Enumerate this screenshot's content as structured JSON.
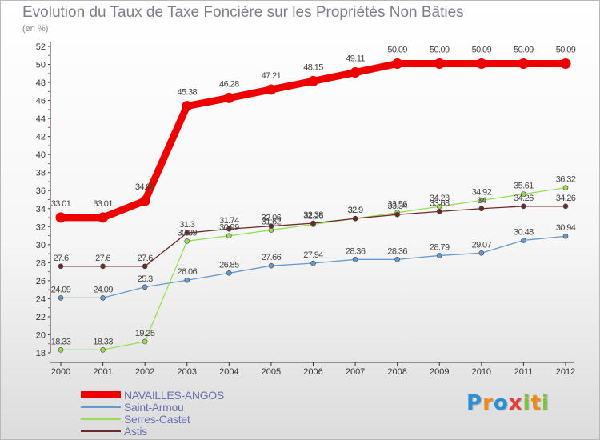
{
  "title": "Evolution du Taux de Taxe Foncière sur les Propriétés Non Bâties",
  "subtitle": "(en %)",
  "chart_data": {
    "type": "line",
    "title": "Evolution du Taux de Taxe Foncière sur les Propriétés Non Bâties",
    "ylabel": "(en %)",
    "xlabel": "",
    "x": [
      "2000",
      "2001",
      "2002",
      "2003",
      "2004",
      "2005",
      "2006",
      "2007",
      "2008",
      "2009",
      "2010",
      "2011",
      "2012"
    ],
    "ylim": [
      18,
      52
    ],
    "y_ticks": [
      18,
      20,
      22,
      24,
      26,
      28,
      30,
      32,
      34,
      36,
      38,
      40,
      42,
      44,
      46,
      48,
      50,
      52
    ],
    "grid": false,
    "legend_position": "bottom-left",
    "series": [
      {
        "name": "NAVAILLES-ANGOS",
        "color": "#ee0000",
        "values": [
          33.01,
          33.01,
          34.86,
          45.38,
          46.28,
          47.21,
          48.15,
          49.11,
          50.09,
          50.09,
          50.09,
          50.09,
          50.09
        ]
      },
      {
        "name": "Saint-Armou",
        "color": "#6699cc",
        "values": [
          24.09,
          24.09,
          25.3,
          26.06,
          26.85,
          27.66,
          27.94,
          28.36,
          28.36,
          28.79,
          29.07,
          30.48,
          30.94
        ]
      },
      {
        "name": "Serres-Castet",
        "color": "#99dd55",
        "values": [
          18.33,
          18.33,
          19.25,
          30.39,
          30.99,
          31.62,
          32.25,
          32.9,
          33.56,
          34.23,
          34.92,
          35.61,
          36.32
        ]
      },
      {
        "name": "Astis",
        "color": "#6b2a2a",
        "values": [
          27.6,
          27.6,
          27.6,
          31.3,
          31.74,
          32.06,
          32.38,
          32.9,
          33.34,
          33.68,
          34.0,
          34.26,
          34.26
        ]
      }
    ]
  },
  "legend": [
    {
      "label": "NAVAILLES-ANGOS",
      "color": "#ee0000"
    },
    {
      "label": "Saint-Armou",
      "color": "#6699cc"
    },
    {
      "label": "Serres-Castet",
      "color": "#99dd55"
    },
    {
      "label": "Astis",
      "color": "#6b2a2a"
    }
  ],
  "logo": {
    "text": "Proxiti",
    "letters": [
      "P",
      "r",
      "o",
      "x",
      "i",
      "t",
      "i"
    ],
    "colors": [
      "#2a8fd4",
      "#f28a1a",
      "#2a8fd4",
      "#e83c3c",
      "#7cc242",
      "#f28a1a",
      "#7cc242"
    ]
  }
}
